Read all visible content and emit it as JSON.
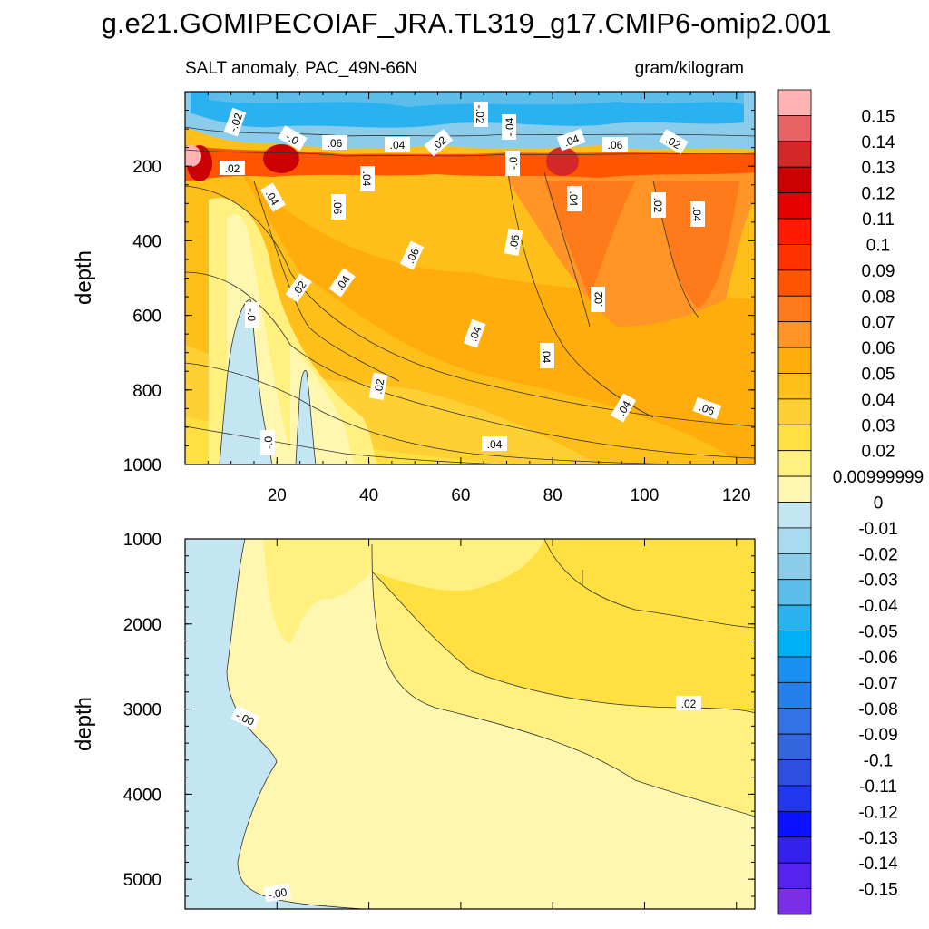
{
  "title": "g.e21.GOMIPECOIAF_JRA.TL319_g17.CMIP6-omip2.001",
  "colorbar": {
    "levels": [
      "0.15",
      "0.14",
      "0.13",
      "0.12",
      "0.11",
      "0.1",
      "0.09",
      "0.08",
      "0.07",
      "0.06",
      "0.05",
      "0.04",
      "0.03",
      "0.02",
      "0.00999999",
      "0",
      "-0.01",
      "-0.02",
      "-0.03",
      "-0.04",
      "-0.05",
      "-0.06",
      "-0.07",
      "-0.08",
      "-0.09",
      "-0.1",
      "-0.11",
      "-0.12",
      "-0.13",
      "-0.14",
      "-0.15"
    ],
    "colors": [
      "#ffb3b3",
      "#e86464",
      "#d42828",
      "#cc0000",
      "#e60000",
      "#ff1a00",
      "#ff3300",
      "#ff5500",
      "#ff7a1a",
      "#ff9526",
      "#ffad0d",
      "#ffbf1a",
      "#ffd033",
      "#ffe040",
      "#fff080",
      "#fff7b0",
      "#c4e6f2",
      "#a8daf0",
      "#8ccceb",
      "#5cbdeb",
      "#2ab2f0",
      "#00b0f5",
      "#1a90f0",
      "#2680eb",
      "#3372e6",
      "#3366dd",
      "#2e4fe0",
      "#2238ee",
      "#0a12ff",
      "#3322ee",
      "#5522ee",
      "#7a2ee6"
    ]
  },
  "chart_data": [
    {
      "type": "heatmap",
      "subtitle_left": "SALT anomaly, PAC_49N-66N",
      "subtitle_right": "gram/kilogram",
      "ylabel": "depth",
      "xlim": [
        0,
        124
      ],
      "ylim": [
        0,
        1000
      ],
      "y_reversed": true,
      "x_ticks": [
        "20",
        "40",
        "60",
        "80",
        "100",
        "120"
      ],
      "y_ticks": [
        "200",
        "400",
        "600",
        "800",
        "1000"
      ],
      "contour_labels": [
        ".02",
        ".04",
        ".06",
        ".02",
        ".04",
        ".06",
        ".04",
        ".02",
        ".04",
        ".06",
        ".04",
        ".02",
        ".04",
        ".06",
        ".04",
        ".02",
        ".04",
        ".06",
        ".04",
        ".02",
        ".04",
        ".06",
        ".02",
        ".04",
        ".06",
        ".04"
      ],
      "contour_labels_negative": [
        "-.02",
        "-.0",
        "-.02",
        "-.04",
        "-.0",
        "-.0",
        "-.0"
      ]
    },
    {
      "type": "heatmap",
      "ylabel": "depth",
      "xlim": [
        0,
        124
      ],
      "ylim": [
        1000,
        5350
      ],
      "y_reversed": true,
      "y_ticks": [
        "1000",
        "2000",
        "3000",
        "4000",
        "5000"
      ],
      "contour_labels": [
        "-.00",
        ".02",
        "-.00"
      ]
    }
  ]
}
